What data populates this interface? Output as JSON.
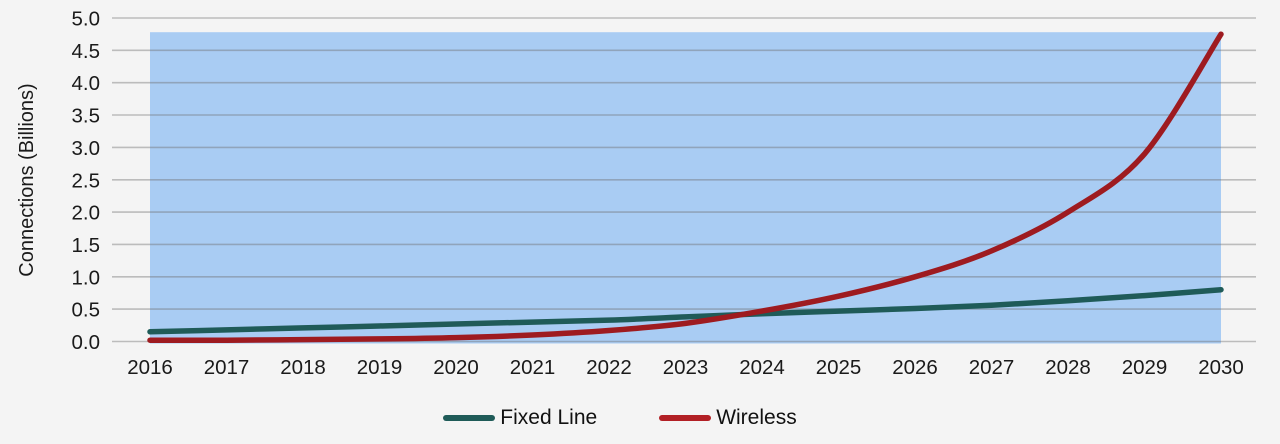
{
  "colors": {
    "background": "#F4F4F4",
    "plot_band": "#A9CCF3",
    "gridline_rgba": "rgba(110,110,110,0.42)",
    "text": "#1A1A1A"
  },
  "chart_data": {
    "type": "line",
    "title": "",
    "xlabel": "",
    "ylabel": "Connections (Billions)",
    "ylim": [
      0,
      5
    ],
    "grid": true,
    "legend_position": "bottom-center",
    "x": [
      2016,
      2017,
      2018,
      2019,
      2020,
      2021,
      2022,
      2023,
      2024,
      2025,
      2026,
      2027,
      2028,
      2029,
      2030
    ],
    "x_tick_labels": [
      "2016",
      "2017",
      "2018",
      "2019",
      "2020",
      "2021",
      "2022",
      "2023",
      "2024",
      "2025",
      "2026",
      "2027",
      "2028",
      "2029",
      "2030"
    ],
    "y_tick_labels": [
      "0.0",
      "0.5",
      "1.0",
      "1.5",
      "2.0",
      "2.5",
      "3.0",
      "3.5",
      "4.0",
      "4.5",
      "5.0"
    ],
    "y_tick_values": [
      0,
      0.5,
      1.0,
      1.5,
      2.0,
      2.5,
      3.0,
      3.5,
      4.0,
      4.5,
      5.0
    ],
    "plot_band": {
      "y_from": 0,
      "y_to": 4.78,
      "color": "#A9CCF3"
    },
    "series": [
      {
        "name": "Fixed Line",
        "color": "#1F5B58",
        "values": [
          0.15,
          0.18,
          0.21,
          0.24,
          0.27,
          0.3,
          0.33,
          0.38,
          0.43,
          0.47,
          0.51,
          0.56,
          0.63,
          0.71,
          0.8
        ]
      },
      {
        "name": "Wireless",
        "color": "#9E1B20",
        "values": [
          0.02,
          0.02,
          0.03,
          0.04,
          0.06,
          0.1,
          0.17,
          0.28,
          0.47,
          0.7,
          1.0,
          1.4,
          2.0,
          2.9,
          4.75
        ]
      }
    ]
  },
  "legend": {
    "items": [
      {
        "label": "Fixed Line",
        "color": "#1F5B58"
      },
      {
        "label": "Wireless",
        "color": "#B22025"
      }
    ]
  }
}
